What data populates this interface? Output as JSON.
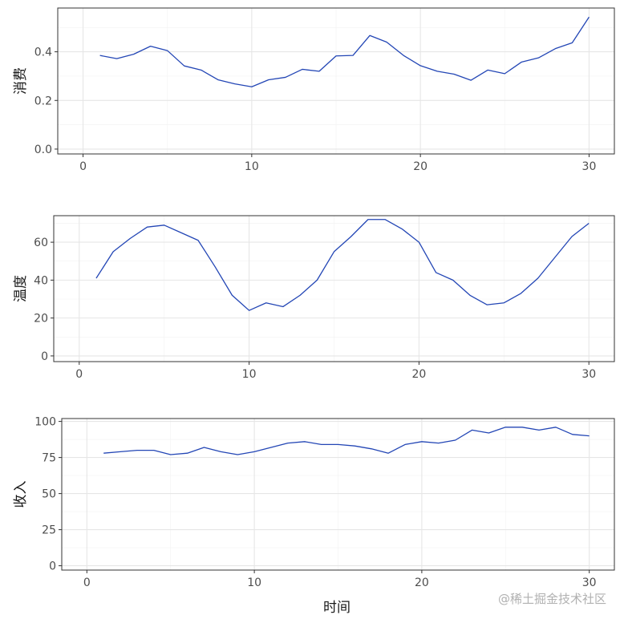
{
  "xlabel": "时间",
  "watermark": "@稀土掘金技术社区",
  "colors": {
    "line": "#2346b5",
    "grid_major": "#e6e6e6",
    "grid_minor": "#f2f2f2",
    "panel_border": "#333333"
  },
  "chart_data": [
    {
      "type": "line",
      "ylabel": "消费",
      "xlim": [
        -1.5,
        31.5
      ],
      "ylim": [
        -0.02,
        0.58
      ],
      "x_ticks": [
        0,
        10,
        20,
        30
      ],
      "y_ticks": [
        0.0,
        0.2,
        0.4
      ],
      "x_tick_labels": [
        "0",
        "10",
        "20",
        "30"
      ],
      "y_tick_labels": [
        "0.0",
        "0.2",
        "0.4"
      ],
      "grid": true,
      "x": [
        1,
        2,
        3,
        4,
        5,
        6,
        7,
        8,
        9,
        10,
        11,
        12,
        13,
        14,
        15,
        16,
        17,
        18,
        19,
        20,
        21,
        22,
        23,
        24,
        25,
        26,
        27,
        28,
        29,
        30
      ],
      "series": [
        {
          "values": [
            0.385,
            0.372,
            0.39,
            0.423,
            0.405,
            0.342,
            0.325,
            0.285,
            0.268,
            0.256,
            0.285,
            0.295,
            0.328,
            0.32,
            0.383,
            0.385,
            0.467,
            0.44,
            0.385,
            0.343,
            0.32,
            0.308,
            0.283,
            0.325,
            0.31,
            0.358,
            0.375,
            0.413,
            0.437,
            0.543
          ]
        }
      ]
    },
    {
      "type": "line",
      "ylabel": "温度",
      "xlim": [
        -1.5,
        31.5
      ],
      "ylim": [
        -3,
        74
      ],
      "x_ticks": [
        0,
        10,
        20,
        30
      ],
      "y_ticks": [
        0,
        20,
        40,
        60
      ],
      "x_tick_labels": [
        "0",
        "10",
        "20",
        "30"
      ],
      "y_tick_labels": [
        "0",
        "20",
        "40",
        "60"
      ],
      "grid": true,
      "x": [
        1,
        2,
        3,
        4,
        5,
        6,
        7,
        8,
        9,
        10,
        11,
        12,
        13,
        14,
        15,
        16,
        17,
        18,
        19,
        20,
        21,
        22,
        23,
        24,
        25,
        26,
        27,
        28,
        29,
        30
      ],
      "series": [
        {
          "values": [
            41,
            55,
            62,
            68,
            69,
            65,
            61,
            47,
            32,
            24,
            28,
            26,
            32,
            40,
            55,
            63,
            72,
            72,
            67,
            60,
            44,
            40,
            32,
            27,
            28,
            33,
            41,
            52,
            63,
            70
          ]
        }
      ]
    },
    {
      "type": "line",
      "ylabel": "收入",
      "xlim": [
        -1.5,
        31.5
      ],
      "ylim": [
        -3,
        102
      ],
      "x_ticks": [
        0,
        10,
        20,
        30
      ],
      "y_ticks": [
        0,
        25,
        50,
        75,
        100
      ],
      "x_tick_labels": [
        "0",
        "10",
        "20",
        "30"
      ],
      "y_tick_labels": [
        "0",
        "25",
        "50",
        "75",
        "100"
      ],
      "grid": true,
      "x": [
        1,
        2,
        3,
        4,
        5,
        6,
        7,
        8,
        9,
        10,
        11,
        12,
        13,
        14,
        15,
        16,
        17,
        18,
        19,
        20,
        21,
        22,
        23,
        24,
        25,
        26,
        27,
        28,
        29,
        30
      ],
      "series": [
        {
          "values": [
            78,
            79,
            80,
            80,
            77,
            78,
            82,
            79,
            77,
            79,
            82,
            85,
            86,
            84,
            84,
            83,
            81,
            78,
            84,
            86,
            85,
            87,
            94,
            92,
            96,
            96,
            94,
            96,
            91,
            90
          ]
        }
      ]
    }
  ]
}
